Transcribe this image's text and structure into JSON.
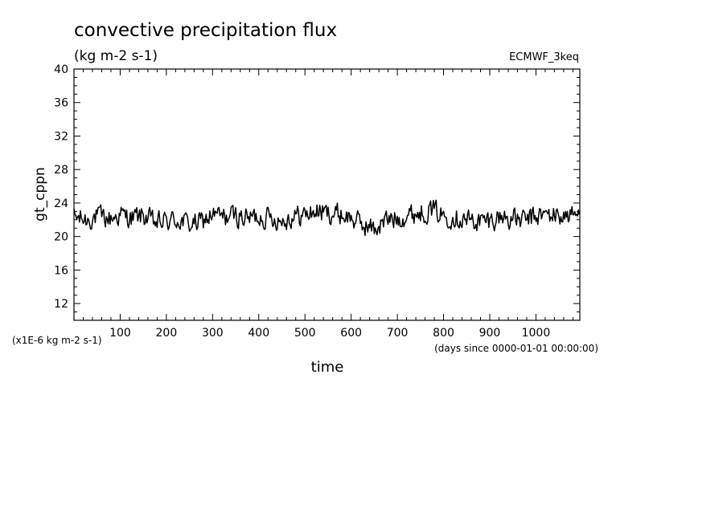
{
  "chart_data": {
    "type": "line",
    "title": "convective precipitation flux",
    "units": "(kg m-2 s-1)",
    "dataset": "ECMWF_3keq",
    "ylabel": "gt_cppn",
    "xlabel": "time",
    "y_scale_note": "(x1E-6 kg m-2 s-1)",
    "x_units_note": "(days since 0000-01-01 00:00:00)",
    "xlim": [
      0,
      1095
    ],
    "ylim": [
      10,
      40
    ],
    "x_ticks": [
      "100",
      "200",
      "300",
      "400",
      "500",
      "600",
      "700",
      "800",
      "900",
      "1000"
    ],
    "y_ticks": [
      "12",
      "16",
      "20",
      "24",
      "28",
      "32",
      "36",
      "40"
    ],
    "grid": false,
    "line_color": "#000000",
    "series": [
      {
        "x": [
          0,
          25,
          50,
          75,
          100,
          125,
          150,
          175,
          200,
          225,
          250,
          275,
          300,
          325,
          350,
          375,
          400,
          425,
          450,
          475,
          500,
          525,
          550,
          575,
          600,
          625,
          650,
          675,
          700,
          725,
          750,
          775,
          800,
          825,
          850,
          875,
          900,
          925,
          950,
          975,
          1000,
          1025,
          1050,
          1075,
          1095
        ],
        "values": [
          22.3,
          22.0,
          22.4,
          22.1,
          22.6,
          22.2,
          22.5,
          21.6,
          21.8,
          22.0,
          21.5,
          21.7,
          22.6,
          22.3,
          22.5,
          22.2,
          22.4,
          22.3,
          21.9,
          22.4,
          22.6,
          23.0,
          22.8,
          22.7,
          22.2,
          21.4,
          20.9,
          21.9,
          22.2,
          22.6,
          22.9,
          23.2,
          22.5,
          22.4,
          22.0,
          21.8,
          21.9,
          22.4,
          22.1,
          21.9,
          22.4,
          22.6,
          22.5,
          22.5,
          22.6
        ]
      }
    ]
  }
}
